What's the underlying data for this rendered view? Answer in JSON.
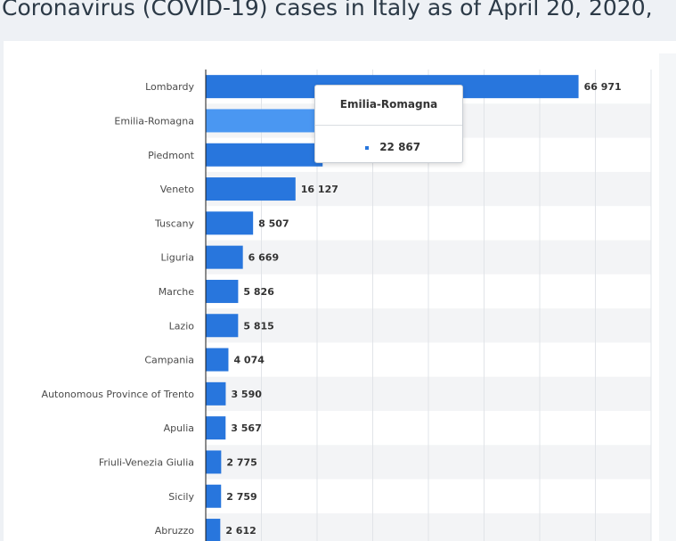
{
  "page": {
    "title": "Coronavirus (COVID-19) cases in Italy as of April 20, 2020,"
  },
  "colors": {
    "bar": "#2876dd",
    "bar_highlight": "#4a97f2",
    "stripe": "#f3f4f6",
    "gridline": "#e1e4e8",
    "axis": "#1a1a1a",
    "label": "#4a4a4a",
    "value_label": "#333333"
  },
  "tooltip": {
    "title": "Emilia-Romagna",
    "value": "22 867"
  },
  "chart_data": {
    "type": "bar",
    "orientation": "horizontal",
    "title": "Coronavirus (COVID-19) cases in Italy as of April 20, 2020,",
    "xlabel": "",
    "ylabel": "",
    "xlim": [
      0,
      80000
    ],
    "grid": true,
    "categories": [
      "Lombardy",
      "Emilia-Romagna",
      "Piedmont",
      "Veneto",
      "Tuscany",
      "Liguria",
      "Marche",
      "Lazio",
      "Campania",
      "Autonomous Province of Trento",
      "Apulia",
      "Friuli-Venezia Giulia",
      "Sicily",
      "Abruzzo"
    ],
    "values": [
      66971,
      22867,
      21000,
      16127,
      8507,
      6669,
      5826,
      5815,
      4074,
      3590,
      3567,
      2775,
      2759,
      2612
    ],
    "value_labels": [
      "66 971",
      "",
      "",
      "16 127",
      "8 507",
      "6 669",
      "5 826",
      "5 815",
      "4 074",
      "3 590",
      "3 567",
      "2 775",
      "2 759",
      "2 612"
    ],
    "highlighted_category": "Emilia-Romagna"
  }
}
